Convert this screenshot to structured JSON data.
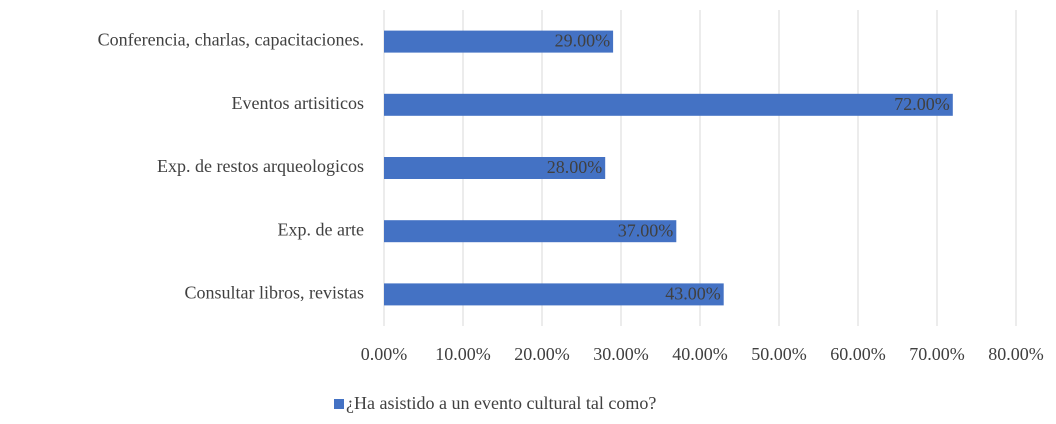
{
  "chart_data": {
    "type": "bar",
    "orientation": "horizontal",
    "categories": [
      "Conferencia, charlas, capacitaciones.",
      "Eventos artisiticos",
      "Exp. de restos arqueologicos",
      "Exp. de arte",
      "Consultar libros, revistas"
    ],
    "series": [
      {
        "name": "¿Ha asistido a un evento cultural tal como?",
        "color": "#4472c4",
        "values": [
          29,
          72,
          28,
          37,
          43
        ],
        "value_labels": [
          "29.00%",
          "72.00%",
          "28.00%",
          "37.00%",
          "43.00%"
        ]
      }
    ],
    "xlim": [
      0,
      80
    ],
    "xticks": [
      {
        "value": 0,
        "label": "0.00%"
      },
      {
        "value": 10,
        "label": "10.00%"
      },
      {
        "value": 20,
        "label": "20.00%"
      },
      {
        "value": 30,
        "label": "30.00%"
      },
      {
        "value": 40,
        "label": "40.00%"
      },
      {
        "value": 50,
        "label": "50.00%"
      },
      {
        "value": 60,
        "label": "60.00%"
      },
      {
        "value": 70,
        "label": "70.00%"
      },
      {
        "value": 80,
        "label": "80.00%"
      }
    ],
    "grid": true,
    "legend": "bottom"
  }
}
